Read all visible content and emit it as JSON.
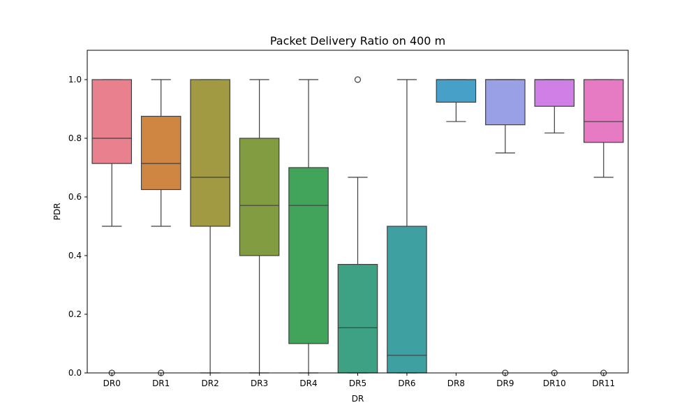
{
  "chart_data": {
    "type": "box",
    "title": "Packet Delivery Ratio on 400 m",
    "xlabel": "DR",
    "ylabel": "PDR",
    "ylim": [
      0,
      1.1
    ],
    "yticks": [
      "0.0",
      "0.2",
      "0.4",
      "0.6",
      "0.8",
      "1.0"
    ],
    "grid": false,
    "categories": [
      "DR0",
      "DR1",
      "DR2",
      "DR3",
      "DR4",
      "DR5",
      "DR6",
      "DR8",
      "DR9",
      "DR10",
      "DR11"
    ],
    "boxes": [
      {
        "category": "DR0",
        "color": "#E8808E",
        "whisker_low": 0.5,
        "q1": 0.714,
        "median": 0.8,
        "q3": 1.0,
        "whisker_high": 1.0,
        "outliers": [
          0.0
        ]
      },
      {
        "category": "DR1",
        "color": "#CF8643",
        "whisker_low": 0.5,
        "q1": 0.625,
        "median": 0.714,
        "q3": 0.875,
        "whisker_high": 1.0,
        "outliers": [
          0.0
        ]
      },
      {
        "category": "DR2",
        "color": "#A29A42",
        "whisker_low": 0.0,
        "q1": 0.5,
        "median": 0.667,
        "q3": 1.0,
        "whisker_high": 1.0,
        "outliers": []
      },
      {
        "category": "DR3",
        "color": "#829C42",
        "whisker_low": 0.0,
        "q1": 0.4,
        "median": 0.571,
        "q3": 0.8,
        "whisker_high": 1.0,
        "outliers": []
      },
      {
        "category": "DR4",
        "color": "#42A35A",
        "whisker_low": 0.0,
        "q1": 0.1,
        "median": 0.571,
        "q3": 0.7,
        "whisker_high": 1.0,
        "outliers": []
      },
      {
        "category": "DR5",
        "color": "#3EA184",
        "whisker_low": 0.0,
        "q1": 0.0,
        "median": 0.154,
        "q3": 0.37,
        "whisker_high": 0.667,
        "outliers": [
          1.0
        ]
      },
      {
        "category": "DR6",
        "color": "#3FA0A2",
        "whisker_low": 0.0,
        "q1": 0.0,
        "median": 0.06,
        "q3": 0.5,
        "whisker_high": 1.0,
        "outliers": []
      },
      {
        "category": "DR8",
        "color": "#46A0C8",
        "whisker_low": 0.857,
        "q1": 0.923,
        "median": 1.0,
        "q3": 1.0,
        "whisker_high": 1.0,
        "outliers": []
      },
      {
        "category": "DR9",
        "color": "#9AA0E6",
        "whisker_low": 0.75,
        "q1": 0.846,
        "median": 1.0,
        "q3": 1.0,
        "whisker_high": 1.0,
        "outliers": [
          0.0
        ]
      },
      {
        "category": "DR10",
        "color": "#D07FE6",
        "whisker_low": 0.818,
        "q1": 0.909,
        "median": 1.0,
        "q3": 1.0,
        "whisker_high": 1.0,
        "outliers": [
          0.0
        ]
      },
      {
        "category": "DR11",
        "color": "#E67BC4",
        "whisker_low": 0.667,
        "q1": 0.786,
        "median": 0.857,
        "q3": 1.0,
        "whisker_high": 1.0,
        "outliers": [
          0.0
        ]
      }
    ]
  }
}
